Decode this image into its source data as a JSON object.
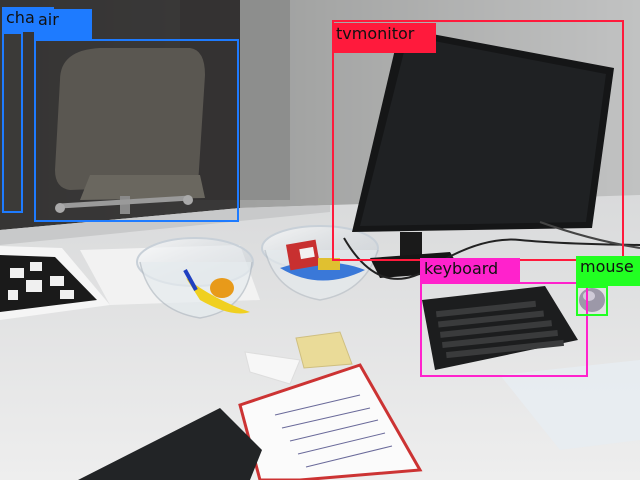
{
  "detections": [
    {
      "label": "chair",
      "color": "#1e7bff"
    },
    {
      "label": "air",
      "color": "#1e7bff"
    },
    {
      "label": "tvmonitor",
      "color": "#ff1a3c"
    },
    {
      "label": "keyboard",
      "color": "#ff22cc"
    },
    {
      "label": "mouse",
      "color": "#22ff22"
    }
  ],
  "paper_note_text": "......"
}
